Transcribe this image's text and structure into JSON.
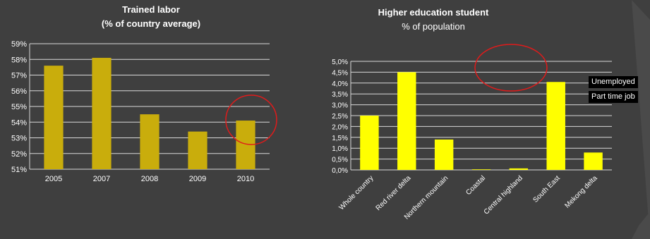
{
  "colors": {
    "background": "#3f3f3f",
    "gridline": "#d9d9d9",
    "axis_text": "#ffffff",
    "left_bar": "#c9ad0c",
    "right_bar": "#ffff00",
    "highlight_circle": "#e01b1b"
  },
  "callouts": {
    "unemployed": "Unemployed",
    "part_time_job": "Part time job"
  },
  "chart_data": [
    {
      "type": "bar",
      "title": "Trained labor",
      "subtitle": "(% of country average)",
      "xlabel": "",
      "ylabel": "",
      "categories": [
        "2005",
        "2007",
        "2008",
        "2009",
        "2010"
      ],
      "values": [
        57.6,
        58.1,
        54.5,
        53.4,
        54.1
      ],
      "ylim": [
        51,
        59
      ],
      "yticks": [
        "51%",
        "52%",
        "53%",
        "54%",
        "55%",
        "56%",
        "57%",
        "58%",
        "59%"
      ],
      "grid": true,
      "highlight": "2010"
    },
    {
      "type": "bar",
      "title": "Higher education student",
      "subtitle": "% of population",
      "xlabel": "",
      "ylabel": "",
      "categories": [
        "Whole country",
        "Red river delta",
        "Northern mountain",
        "Coastal",
        "Central highland",
        "South East",
        "Mekong delta"
      ],
      "values": [
        2.5,
        4.5,
        1.4,
        0.02,
        0.07,
        4.05,
        0.8
      ],
      "ylim": [
        0,
        5
      ],
      "yticks": [
        "0,0%",
        "0,5%",
        "1,0%",
        "1,5%",
        "2,0%",
        "2,5%",
        "3,0%",
        "3,5%",
        "4,0%",
        "4,5%",
        "5,0%"
      ],
      "grid": true,
      "highlight": "above plot, between Coastal and Central highland"
    }
  ]
}
